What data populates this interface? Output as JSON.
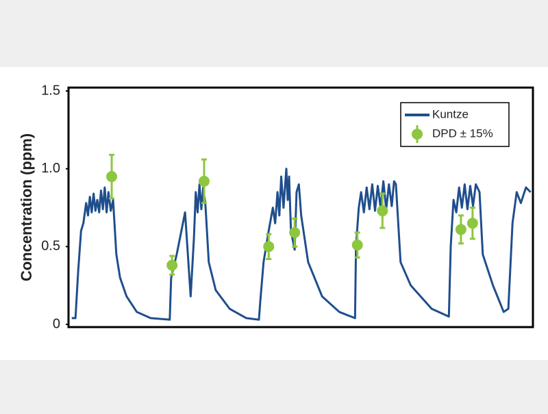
{
  "chart_data": {
    "type": "line",
    "ylabel": "Concentration (ppm)",
    "ylim": [
      0,
      1.5
    ],
    "yticks": [
      0,
      0.5,
      {
        "value": 1,
        "label": "1.0"
      },
      1.5
    ],
    "xlim": [
      0,
      100
    ],
    "legend": "top-right",
    "series": [
      {
        "name": "Kuntze",
        "color": "#1f4e8c",
        "x": [
          0.7,
          1.5,
          2.1,
          2.7,
          3.2,
          3.8,
          4.2,
          4.6,
          5.0,
          5.4,
          5.8,
          6.2,
          6.6,
          7.0,
          7.4,
          7.8,
          8.2,
          8.6,
          9.1,
          9.6,
          10.3,
          11.1,
          12.5,
          14.7,
          17.7,
          21.8,
          22.1,
          23.3,
          25.1,
          26.3,
          27.0,
          27.4,
          27.8,
          28.2,
          28.6,
          29.0,
          29.5,
          30.2,
          31.7,
          34.7,
          38.3,
          41.0,
          41.3,
          42.0,
          43.1,
          44.0,
          44.5,
          45.0,
          45.4,
          45.8,
          46.3,
          46.9,
          47.2,
          47.5,
          47.9,
          48.7,
          49.1,
          49.6,
          50.1,
          51.6,
          54.6,
          58.3,
          61.7,
          61.9,
          62.5,
          63.0,
          63.6,
          64.2,
          64.8,
          65.4,
          66.0,
          66.6,
          67.2,
          67.8,
          68.4,
          69.0,
          69.6,
          70.1,
          70.5,
          71.5,
          73.7,
          78.2,
          81.9,
          82.3,
          82.9,
          83.5,
          84.1,
          84.7,
          85.3,
          85.9,
          86.5,
          87.1,
          87.7,
          88.5,
          89.2,
          91.4,
          93.7,
          94.7,
          95.6,
          96.5,
          97.4,
          98.5,
          99.5
        ],
        "values": [
          0.04,
          0.04,
          0.35,
          0.6,
          0.65,
          0.78,
          0.7,
          0.82,
          0.72,
          0.84,
          0.73,
          0.8,
          0.72,
          0.86,
          0.74,
          0.88,
          0.72,
          0.85,
          0.73,
          0.8,
          0.45,
          0.3,
          0.18,
          0.08,
          0.04,
          0.03,
          0.3,
          0.45,
          0.72,
          0.18,
          0.55,
          0.85,
          0.72,
          0.9,
          0.74,
          0.88,
          0.76,
          0.4,
          0.22,
          0.1,
          0.04,
          0.03,
          0.15,
          0.4,
          0.6,
          0.75,
          0.65,
          0.85,
          0.7,
          0.95,
          0.75,
          1.0,
          0.8,
          0.95,
          0.6,
          0.48,
          0.85,
          0.9,
          0.7,
          0.4,
          0.18,
          0.08,
          0.04,
          0.5,
          0.75,
          0.85,
          0.72,
          0.88,
          0.74,
          0.9,
          0.73,
          0.89,
          0.75,
          0.92,
          0.74,
          0.9,
          0.76,
          0.92,
          0.9,
          0.4,
          0.25,
          0.1,
          0.05,
          0.5,
          0.8,
          0.72,
          0.88,
          0.75,
          0.9,
          0.74,
          0.89,
          0.76,
          0.9,
          0.85,
          0.45,
          0.25,
          0.08,
          0.1,
          0.65,
          0.85,
          0.78,
          0.88,
          0.85
        ]
      },
      {
        "name": "DPD ± 15%",
        "color": "#8dc63f",
        "kind": "errorbar",
        "x": [
          9.3,
          22.3,
          29.2,
          43.1,
          48.7,
          62.2,
          67.6,
          84.5,
          87.0
        ],
        "values": [
          0.95,
          0.38,
          0.92,
          0.5,
          0.59,
          0.51,
          0.73,
          0.61,
          0.65
        ],
        "errors": [
          0.14,
          0.06,
          0.14,
          0.08,
          0.09,
          0.08,
          0.11,
          0.09,
          0.1
        ]
      }
    ]
  }
}
